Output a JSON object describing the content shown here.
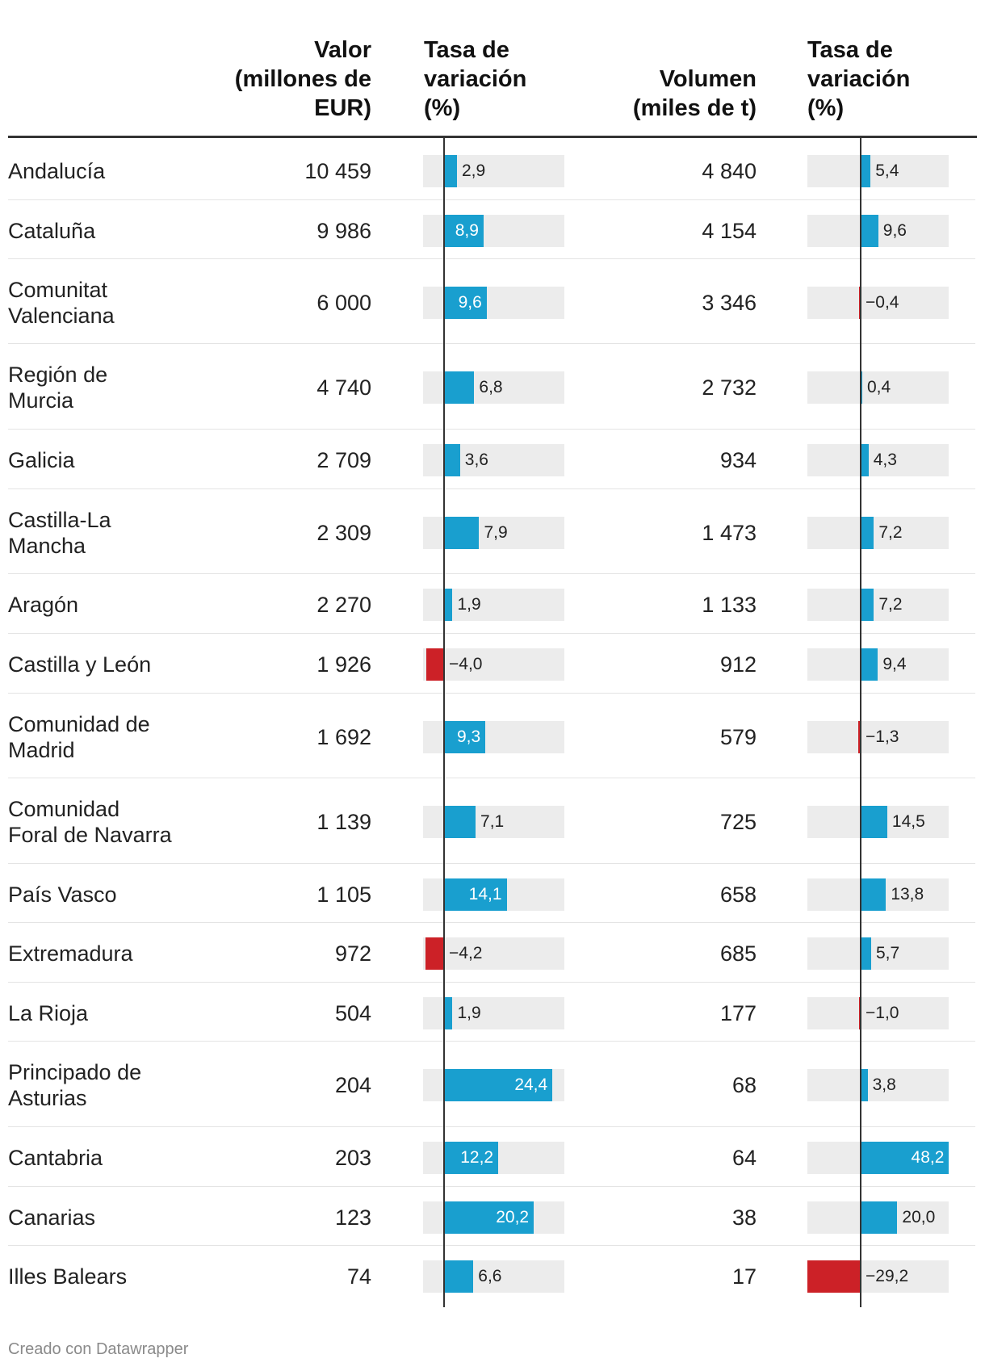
{
  "headers": {
    "valor": "Valor\n(millones de\nEUR)",
    "tasa1": "Tasa de\nvariación\n(%)",
    "volumen": "Volumen\n(miles de t)",
    "tasa2": "Tasa de\nvariación\n(%)"
  },
  "chart_data": {
    "type": "table",
    "columns": [
      "",
      "Valor (millones de EUR)",
      "Tasa de variación (%)",
      "Volumen (miles de t)",
      "Tasa de variación (%)"
    ],
    "bar_scale_1": [
      -4.2,
      24.4
    ],
    "bar_scale_2": [
      -29.2,
      48.2
    ],
    "rows": [
      {
        "region": "Andalucía",
        "valor": "10 459",
        "tasa1": 2.9,
        "tasa1_label": "2,9",
        "volumen": "4 840",
        "tasa2": 5.4,
        "tasa2_label": "5,4"
      },
      {
        "region": "Cataluña",
        "valor": "9 986",
        "tasa1": 8.9,
        "tasa1_label": "8,9",
        "volumen": "4 154",
        "tasa2": 9.6,
        "tasa2_label": "9,6"
      },
      {
        "region": "Comunitat\nValenciana",
        "valor": "6 000",
        "tasa1": 9.6,
        "tasa1_label": "9,6",
        "volumen": "3 346",
        "tasa2": -0.4,
        "tasa2_label": "−0,4"
      },
      {
        "region": "Región de\nMurcia",
        "valor": "4 740",
        "tasa1": 6.8,
        "tasa1_label": "6,8",
        "volumen": "2 732",
        "tasa2": 0.4,
        "tasa2_label": "0,4"
      },
      {
        "region": "Galicia",
        "valor": "2 709",
        "tasa1": 3.6,
        "tasa1_label": "3,6",
        "volumen": "934",
        "tasa2": 4.3,
        "tasa2_label": "4,3"
      },
      {
        "region": "Castilla-La\nMancha",
        "valor": "2 309",
        "tasa1": 7.9,
        "tasa1_label": "7,9",
        "volumen": "1 473",
        "tasa2": 7.2,
        "tasa2_label": "7,2"
      },
      {
        "region": "Aragón",
        "valor": "2 270",
        "tasa1": 1.9,
        "tasa1_label": "1,9",
        "volumen": "1 133",
        "tasa2": 7.2,
        "tasa2_label": "7,2"
      },
      {
        "region": "Castilla y León",
        "valor": "1 926",
        "tasa1": -4.0,
        "tasa1_label": "−4,0",
        "volumen": "912",
        "tasa2": 9.4,
        "tasa2_label": "9,4"
      },
      {
        "region": "Comunidad de\nMadrid",
        "valor": "1 692",
        "tasa1": 9.3,
        "tasa1_label": "9,3",
        "volumen": "579",
        "tasa2": -1.3,
        "tasa2_label": "−1,3"
      },
      {
        "region": "Comunidad\nForal de Navarra",
        "valor": "1 139",
        "tasa1": 7.1,
        "tasa1_label": "7,1",
        "volumen": "725",
        "tasa2": 14.5,
        "tasa2_label": "14,5"
      },
      {
        "region": "País Vasco",
        "valor": "1 105",
        "tasa1": 14.1,
        "tasa1_label": "14,1",
        "volumen": "658",
        "tasa2": 13.8,
        "tasa2_label": "13,8"
      },
      {
        "region": "Extremadura",
        "valor": "972",
        "tasa1": -4.2,
        "tasa1_label": "−4,2",
        "volumen": "685",
        "tasa2": 5.7,
        "tasa2_label": "5,7"
      },
      {
        "region": "La Rioja",
        "valor": "504",
        "tasa1": 1.9,
        "tasa1_label": "1,9",
        "volumen": "177",
        "tasa2": -1.0,
        "tasa2_label": "−1,0"
      },
      {
        "region": "Principado de\nAsturias",
        "valor": "204",
        "tasa1": 24.4,
        "tasa1_label": "24,4",
        "volumen": "68",
        "tasa2": 3.8,
        "tasa2_label": "3,8"
      },
      {
        "region": "Cantabria",
        "valor": "203",
        "tasa1": 12.2,
        "tasa1_label": "12,2",
        "volumen": "64",
        "tasa2": 48.2,
        "tasa2_label": "48,2"
      },
      {
        "region": "Canarias",
        "valor": "123",
        "tasa1": 20.2,
        "tasa1_label": "20,2",
        "volumen": "38",
        "tasa2": 20.0,
        "tasa2_label": "20,0"
      },
      {
        "region": "Illes Balears",
        "valor": "74",
        "tasa1": 6.6,
        "tasa1_label": "6,6",
        "volumen": "17",
        "tasa2": -29.2,
        "tasa2_label": "−29,2"
      }
    ]
  },
  "colors": {
    "positive": "#199fcf",
    "negative": "#cc2127",
    "track": "#ececec"
  },
  "footer": "Creado con Datawrapper"
}
